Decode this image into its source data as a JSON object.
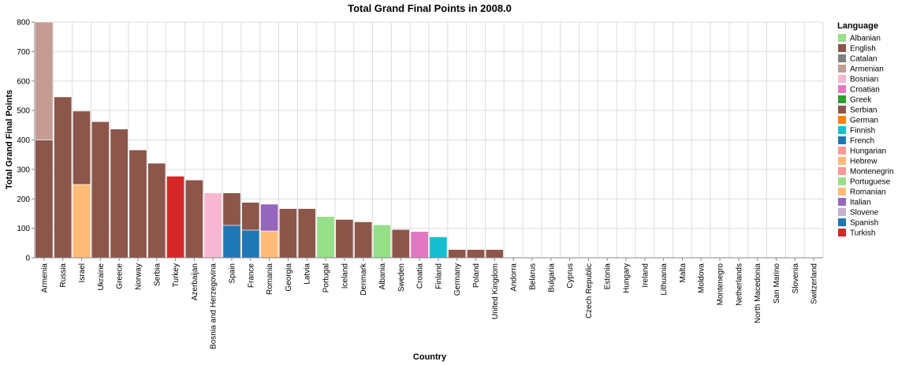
{
  "chart_data": {
    "type": "bar",
    "stacked": true,
    "title": "Total Grand Final Points in 2008.0",
    "xlabel": "Country",
    "ylabel": "Total Grand Final Points",
    "ylim": [
      0,
      800
    ],
    "yticks": [
      0,
      100,
      200,
      300,
      400,
      500,
      600,
      700,
      800
    ],
    "grid": true,
    "legend": {
      "title": "Language",
      "placement": "right",
      "entries": [
        {
          "name": "Albanian",
          "color": "#98df8a"
        },
        {
          "name": "English",
          "color": "#8c564b"
        },
        {
          "name": "Catalan",
          "color": "#7f7f7f"
        },
        {
          "name": "Armenian",
          "color": "#c49c94"
        },
        {
          "name": "Bosnian",
          "color": "#f7b6d2"
        },
        {
          "name": "Croatian",
          "color": "#e377c2"
        },
        {
          "name": "Greek",
          "color": "#2ca02c"
        },
        {
          "name": "Serbian",
          "color": "#8c564b"
        },
        {
          "name": "German",
          "color": "#ff7f0e"
        },
        {
          "name": "Finnish",
          "color": "#17becf"
        },
        {
          "name": "French",
          "color": "#1f77b4"
        },
        {
          "name": "Hungarian",
          "color": "#ff9896"
        },
        {
          "name": "Hebrew",
          "color": "#ffbb78"
        },
        {
          "name": "Montenegrin",
          "color": "#ff9896"
        },
        {
          "name": "Portuguese",
          "color": "#98df8a"
        },
        {
          "name": "Romanian",
          "color": "#ffbb78"
        },
        {
          "name": "Italian",
          "color": "#9467bd"
        },
        {
          "name": "Slovene",
          "color": "#c5b0d5"
        },
        {
          "name": "Spanish",
          "color": "#1f77b4"
        },
        {
          "name": "Turkish",
          "color": "#d62728"
        }
      ]
    },
    "categories": [
      "Armenia",
      "Russia",
      "Israel",
      "Ukraine",
      "Greece",
      "Norway",
      "Serbia",
      "Turkey",
      "Azerbaijan",
      "Bosnia and Herzegovina",
      "Spain",
      "France",
      "Romania",
      "Georgia",
      "Latvia",
      "Portugal",
      "Iceland",
      "Denmark",
      "Albania",
      "Sweden",
      "Croatia",
      "Finland",
      "Germany",
      "Poland",
      "United Kingdom",
      "Andorra",
      "Belarus",
      "Bulgaria",
      "Cyprus",
      "Czech Republic",
      "Estonia",
      "Hungary",
      "Ireland",
      "Lithuania",
      "Malta",
      "Moldova",
      "Montenegro",
      "Netherlands",
      "North Macedonia",
      "San Marino",
      "Slovenia",
      "Switzerland"
    ],
    "bars": [
      {
        "country": "Armenia",
        "segments": [
          {
            "language": "English",
            "value": 400
          },
          {
            "language": "Armenian",
            "value": 400
          }
        ]
      },
      {
        "country": "Russia",
        "segments": [
          {
            "language": "English",
            "value": 546
          }
        ]
      },
      {
        "country": "Israel",
        "segments": [
          {
            "language": "Hebrew",
            "value": 249
          },
          {
            "language": "English",
            "value": 249
          }
        ]
      },
      {
        "country": "Ukraine",
        "segments": [
          {
            "language": "English",
            "value": 462
          }
        ]
      },
      {
        "country": "Greece",
        "segments": [
          {
            "language": "English",
            "value": 437
          }
        ]
      },
      {
        "country": "Norway",
        "segments": [
          {
            "language": "English",
            "value": 366
          }
        ]
      },
      {
        "country": "Serbia",
        "segments": [
          {
            "language": "Serbian",
            "value": 321
          }
        ]
      },
      {
        "country": "Turkey",
        "segments": [
          {
            "language": "Turkish",
            "value": 277
          }
        ]
      },
      {
        "country": "Azerbaijan",
        "segments": [
          {
            "language": "English",
            "value": 264
          }
        ]
      },
      {
        "country": "Bosnia and Herzegovina",
        "segments": [
          {
            "language": "Bosnian",
            "value": 220
          }
        ]
      },
      {
        "country": "Spain",
        "segments": [
          {
            "language": "Spanish",
            "value": 110
          },
          {
            "language": "English",
            "value": 110
          }
        ]
      },
      {
        "country": "France",
        "segments": [
          {
            "language": "French",
            "value": 94
          },
          {
            "language": "English",
            "value": 94
          }
        ]
      },
      {
        "country": "Romania",
        "segments": [
          {
            "language": "Romanian",
            "value": 91
          },
          {
            "language": "Italian",
            "value": 91
          }
        ]
      },
      {
        "country": "Georgia",
        "segments": [
          {
            "language": "English",
            "value": 167
          }
        ]
      },
      {
        "country": "Latvia",
        "segments": [
          {
            "language": "English",
            "value": 167
          }
        ]
      },
      {
        "country": "Portugal",
        "segments": [
          {
            "language": "Portuguese",
            "value": 140
          }
        ]
      },
      {
        "country": "Iceland",
        "segments": [
          {
            "language": "English",
            "value": 130
          }
        ]
      },
      {
        "country": "Denmark",
        "segments": [
          {
            "language": "English",
            "value": 122
          }
        ]
      },
      {
        "country": "Albania",
        "segments": [
          {
            "language": "Albanian",
            "value": 112
          }
        ]
      },
      {
        "country": "Sweden",
        "segments": [
          {
            "language": "English",
            "value": 96
          }
        ]
      },
      {
        "country": "Croatia",
        "segments": [
          {
            "language": "Croatian",
            "value": 89
          }
        ]
      },
      {
        "country": "Finland",
        "segments": [
          {
            "language": "Finnish",
            "value": 71
          }
        ]
      },
      {
        "country": "Germany",
        "segments": [
          {
            "language": "English",
            "value": 28
          }
        ]
      },
      {
        "country": "Poland",
        "segments": [
          {
            "language": "English",
            "value": 28
          }
        ]
      },
      {
        "country": "United Kingdom",
        "segments": [
          {
            "language": "English",
            "value": 28
          }
        ]
      },
      {
        "country": "Andorra",
        "segments": []
      },
      {
        "country": "Belarus",
        "segments": []
      },
      {
        "country": "Bulgaria",
        "segments": []
      },
      {
        "country": "Cyprus",
        "segments": []
      },
      {
        "country": "Czech Republic",
        "segments": []
      },
      {
        "country": "Estonia",
        "segments": []
      },
      {
        "country": "Hungary",
        "segments": []
      },
      {
        "country": "Ireland",
        "segments": []
      },
      {
        "country": "Lithuania",
        "segments": []
      },
      {
        "country": "Malta",
        "segments": []
      },
      {
        "country": "Moldova",
        "segments": []
      },
      {
        "country": "Montenegro",
        "segments": []
      },
      {
        "country": "Netherlands",
        "segments": []
      },
      {
        "country": "North Macedonia",
        "segments": []
      },
      {
        "country": "San Marino",
        "segments": []
      },
      {
        "country": "Slovenia",
        "segments": []
      },
      {
        "country": "Switzerland",
        "segments": []
      }
    ]
  }
}
